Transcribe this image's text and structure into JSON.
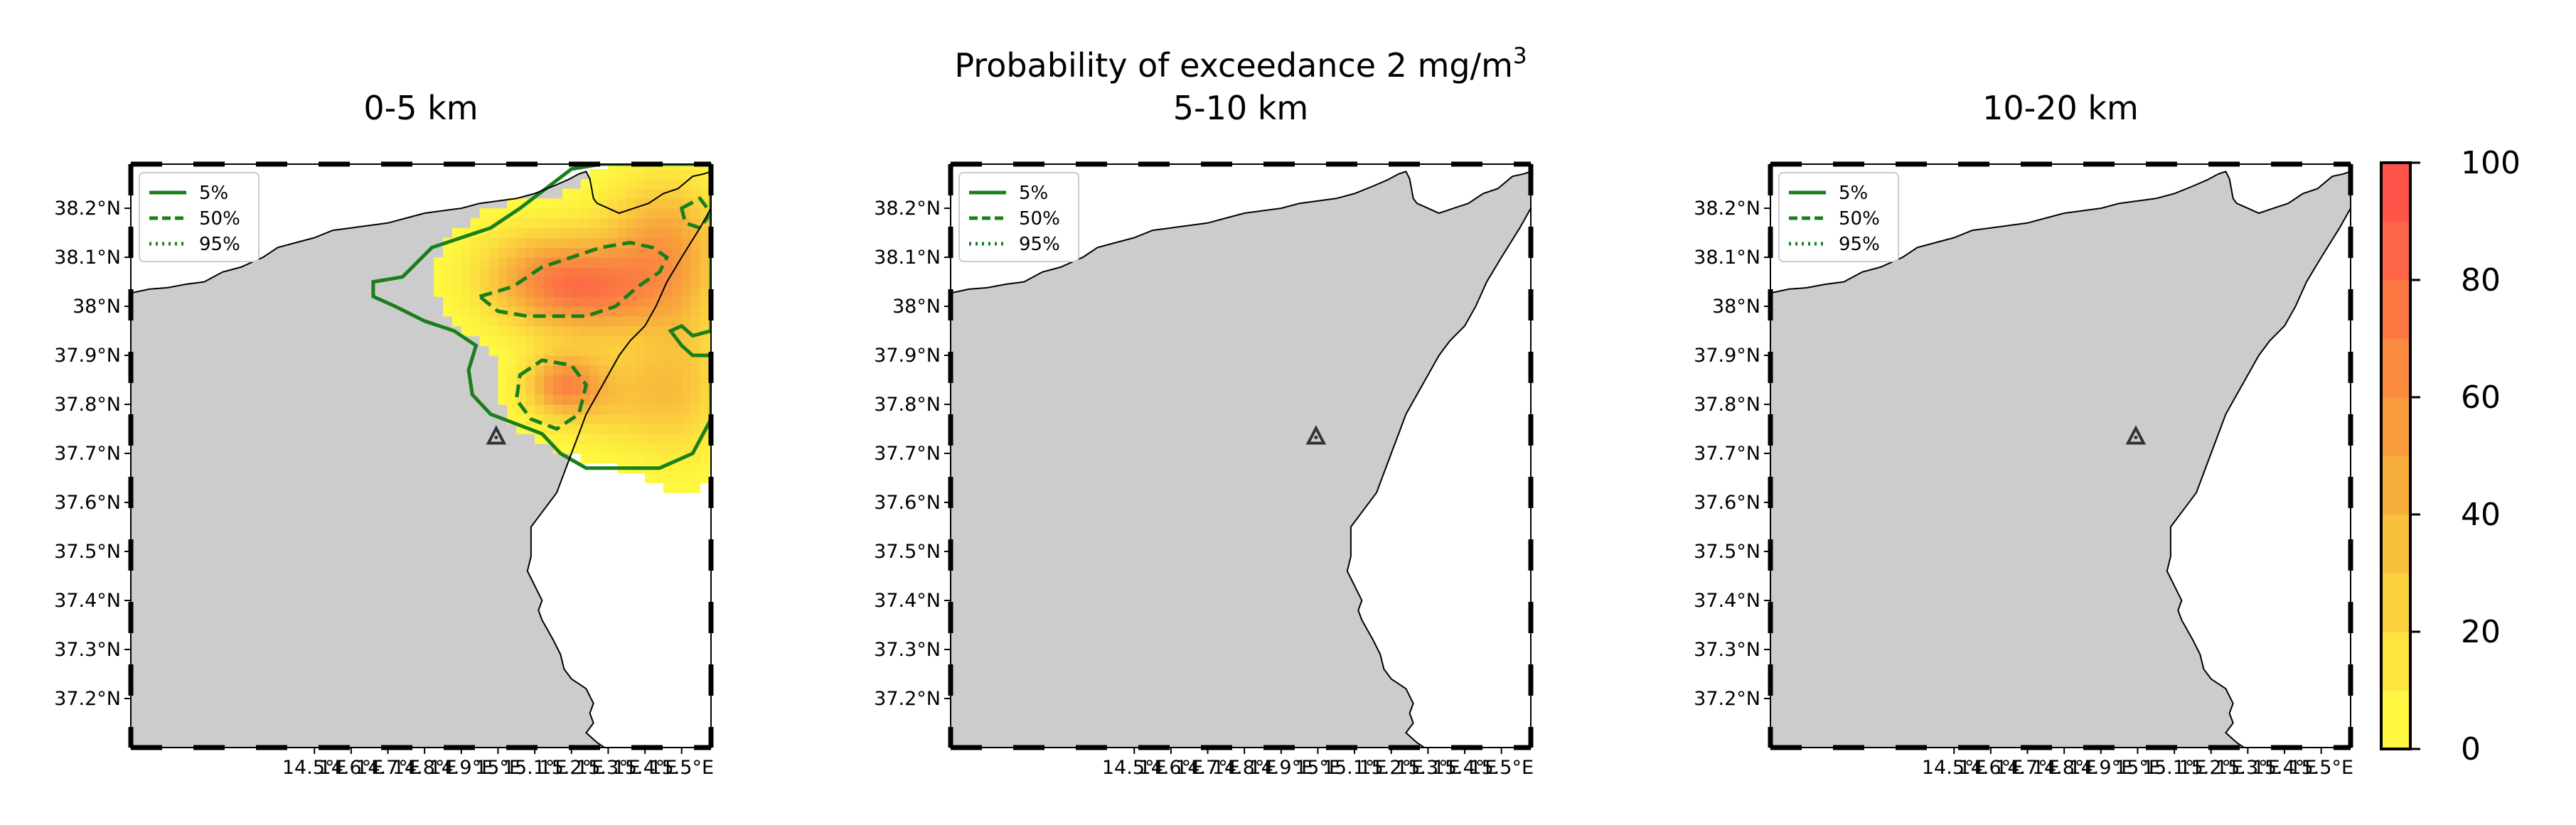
{
  "suptitle": "Probability of exceedance 2 mg/m",
  "suptitle_sup": "3",
  "chart_data": [
    {
      "type": "heatmap",
      "title": "0-5 km",
      "xlim": [
        14.0,
        15.58
      ],
      "ylim": [
        37.1,
        38.29
      ],
      "xticks": [
        14.5,
        14.6,
        14.7,
        14.8,
        14.9,
        15.0,
        15.1,
        15.2,
        15.3,
        15.4,
        15.5
      ],
      "xtick_labels": [
        "14.5°E",
        "14.6°E",
        "14.7°E",
        "14.8°E",
        "14.9°E",
        "15°E",
        "15.1°E",
        "15.2°E",
        "15.3°E",
        "15.4°E",
        "15.5°E"
      ],
      "yticks": [
        37.2,
        37.3,
        37.4,
        37.5,
        37.6,
        37.7,
        37.8,
        37.9,
        38.0,
        38.1,
        38.2
      ],
      "ytick_labels": [
        "37.2°N",
        "37.3°N",
        "37.4°N",
        "37.5°N",
        "37.6°N",
        "37.7°N",
        "37.8°N",
        "37.9°N",
        "38°N",
        "38.1°N",
        "38.2°N"
      ],
      "legend": {
        "placement": "top-left",
        "entries": [
          {
            "label": "5%",
            "style": "solid"
          },
          {
            "label": "50%",
            "style": "dashed"
          },
          {
            "label": "95%",
            "style": "dotted"
          }
        ]
      },
      "volcano": {
        "x": 14.995,
        "y": 37.734
      },
      "has_plume": true
    },
    {
      "type": "heatmap",
      "title": "5-10 km",
      "xlim": [
        14.0,
        15.58
      ],
      "ylim": [
        37.1,
        38.29
      ],
      "xticks": [
        14.5,
        14.6,
        14.7,
        14.8,
        14.9,
        15.0,
        15.1,
        15.2,
        15.3,
        15.4,
        15.5
      ],
      "xtick_labels": [
        "14.5°E",
        "14.6°E",
        "14.7°E",
        "14.8°E",
        "14.9°E",
        "15°E",
        "15.1°E",
        "15.2°E",
        "15.3°E",
        "15.4°E",
        "15.5°E"
      ],
      "yticks": [
        37.2,
        37.3,
        37.4,
        37.5,
        37.6,
        37.7,
        37.8,
        37.9,
        38.0,
        38.1,
        38.2
      ],
      "ytick_labels": [
        "37.2°N",
        "37.3°N",
        "37.4°N",
        "37.5°N",
        "37.6°N",
        "37.7°N",
        "37.8°N",
        "37.9°N",
        "38°N",
        "38.1°N",
        "38.2°N"
      ],
      "legend": {
        "placement": "top-left",
        "entries": [
          {
            "label": "5%",
            "style": "solid"
          },
          {
            "label": "50%",
            "style": "dashed"
          },
          {
            "label": "95%",
            "style": "dotted"
          }
        ]
      },
      "volcano": {
        "x": 14.995,
        "y": 37.734
      },
      "has_plume": false
    },
    {
      "type": "heatmap",
      "title": "10-20 km",
      "xlim": [
        14.0,
        15.58
      ],
      "ylim": [
        37.1,
        38.29
      ],
      "xticks": [
        14.5,
        14.6,
        14.7,
        14.8,
        14.9,
        15.0,
        15.1,
        15.2,
        15.3,
        15.4,
        15.5
      ],
      "xtick_labels": [
        "14.5°E",
        "14.6°E",
        "14.7°E",
        "14.8°E",
        "14.9°E",
        "15°E",
        "15.1°E",
        "15.2°E",
        "15.3°E",
        "15.4°E",
        "15.5°E"
      ],
      "yticks": [
        37.2,
        37.3,
        37.4,
        37.5,
        37.6,
        37.7,
        37.8,
        37.9,
        38.0,
        38.1,
        38.2
      ],
      "ytick_labels": [
        "37.2°N",
        "37.3°N",
        "37.4°N",
        "37.5°N",
        "37.6°N",
        "37.7°N",
        "37.8°N",
        "37.9°N",
        "38°N",
        "38.1°N",
        "38.2°N"
      ],
      "legend": {
        "placement": "top-left",
        "entries": [
          {
            "label": "5%",
            "style": "solid"
          },
          {
            "label": "50%",
            "style": "dashed"
          },
          {
            "label": "95%",
            "style": "dotted"
          }
        ]
      },
      "volcano": {
        "x": 14.995,
        "y": 37.734
      },
      "has_plume": false
    }
  ],
  "colorbar": {
    "range": [
      0,
      100
    ],
    "ticks": [
      0,
      20,
      40,
      60,
      80,
      100
    ],
    "levels": 10,
    "color_low": "#ffff40",
    "color_mid": "#f7a53c",
    "color_high": "#ff4a4a"
  },
  "colors": {
    "land": "#cccccc",
    "contour": "#1a7f1a",
    "coast": "#000000",
    "volcano": "#333333"
  }
}
